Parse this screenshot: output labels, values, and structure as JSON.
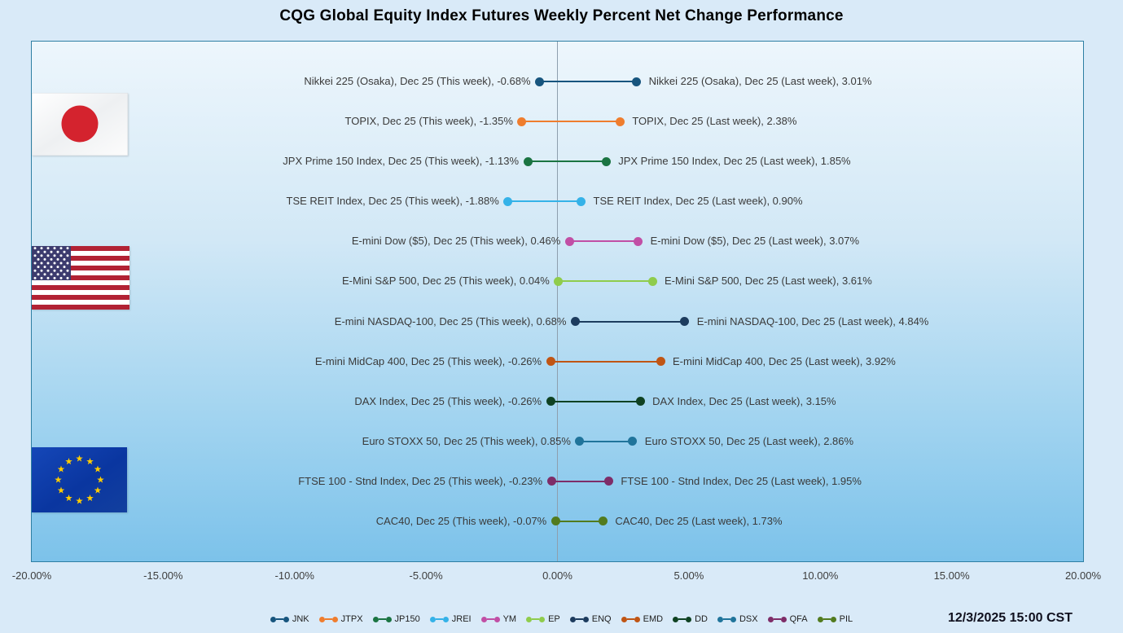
{
  "title": "CQG Global Equity Index Futures Weekly Percent Net Change Performance",
  "timestamp": "12/3/2025 15:00 CST",
  "flags": [
    {
      "icon": "japan-flag"
    },
    {
      "icon": "us-flag"
    },
    {
      "icon": "eu-flag"
    }
  ],
  "chart_data": {
    "type": "dumbbell",
    "title": "CQG Global Equity Index Futures Weekly Percent Net Change Performance",
    "xlabel": "",
    "xlim": [
      -20,
      20
    ],
    "x_ticks": [
      "-20.00%",
      "-15.00%",
      "-10.00%",
      "-5.00%",
      "0.00%",
      "5.00%",
      "10.00%",
      "15.00%",
      "20.00%"
    ],
    "x_tick_values": [
      -20,
      -15,
      -10,
      -5,
      0,
      5,
      10,
      15,
      20
    ],
    "grid": "zero-line-only",
    "legend_position": "bottom",
    "series_labels": [
      "This week",
      "Last week"
    ],
    "rows": [
      {
        "symbol": "JNK",
        "name": "Nikkei 225 (Osaka), Dec 25",
        "this_week": -0.68,
        "last_week": 3.01,
        "color": "#17557E",
        "this_week_label": "Nikkei 225 (Osaka), Dec 25 (This week), -0.68%",
        "last_week_label": "Nikkei 225 (Osaka), Dec 25 (Last week), 3.01%"
      },
      {
        "symbol": "JTPX",
        "name": "TOPIX, Dec 25",
        "this_week": -1.35,
        "last_week": 2.38,
        "color": "#EF7D2E",
        "this_week_label": "TOPIX, Dec 25 (This week), -1.35%",
        "last_week_label": "TOPIX, Dec 25 (Last week), 2.38%"
      },
      {
        "symbol": "JP150",
        "name": "JPX Prime 150 Index, Dec 25",
        "this_week": -1.13,
        "last_week": 1.85,
        "color": "#1B7442",
        "this_week_label": "JPX Prime 150 Index, Dec 25 (This week), -1.13%",
        "last_week_label": "JPX Prime 150 Index, Dec 25 (Last week), 1.85%"
      },
      {
        "symbol": "JREI",
        "name": "TSE REIT Index, Dec 25",
        "this_week": -1.88,
        "last_week": 0.9,
        "color": "#35B2E8",
        "this_week_label": "TSE REIT Index, Dec 25 (This week), -1.88%",
        "last_week_label": "TSE REIT Index, Dec 25 (Last week), 0.90%"
      },
      {
        "symbol": "YM",
        "name": "E-mini Dow ($5), Dec 25",
        "this_week": 0.46,
        "last_week": 3.07,
        "color": "#C14FA5",
        "this_week_label": "E-mini Dow ($5), Dec 25 (This week), 0.46%",
        "last_week_label": "E-mini Dow ($5), Dec 25 (Last week), 3.07%"
      },
      {
        "symbol": "EP",
        "name": "E-Mini S&P 500, Dec 25",
        "this_week": 0.04,
        "last_week": 3.61,
        "color": "#8FCC4C",
        "this_week_label": "E-Mini S&P 500, Dec 25 (This week), 0.04%",
        "last_week_label": "E-Mini S&P 500, Dec 25 (Last week), 3.61%"
      },
      {
        "symbol": "ENQ",
        "name": "E-mini NASDAQ-100, Dec 25",
        "this_week": 0.68,
        "last_week": 4.84,
        "color": "#1D3C5E",
        "this_week_label": "E-mini NASDAQ-100, Dec 25 (This week), 0.68%",
        "last_week_label": "E-mini NASDAQ-100, Dec 25 (Last week), 4.84%"
      },
      {
        "symbol": "EMD",
        "name": "E-mini MidCap 400, Dec 25",
        "this_week": -0.26,
        "last_week": 3.92,
        "color": "#C05514",
        "this_week_label": "E-mini MidCap 400, Dec 25 (This week), -0.26%",
        "last_week_label": "E-mini MidCap 400, Dec 25 (Last week), 3.92%"
      },
      {
        "symbol": "DD",
        "name": "DAX Index, Dec 25",
        "this_week": -0.26,
        "last_week": 3.15,
        "color": "#0F4222",
        "this_week_label": "DAX Index, Dec 25 (This week), -0.26%",
        "last_week_label": "DAX Index, Dec 25 (Last week), 3.15%"
      },
      {
        "symbol": "DSX",
        "name": "Euro STOXX 50, Dec 25",
        "this_week": 0.85,
        "last_week": 2.86,
        "color": "#20749B",
        "this_week_label": "Euro STOXX 50, Dec 25 (This week), 0.85%",
        "last_week_label": "Euro STOXX 50, Dec 25 (Last week), 2.86%"
      },
      {
        "symbol": "QFA",
        "name": "FTSE 100 - Stnd Index, Dec 25",
        "this_week": -0.23,
        "last_week": 1.95,
        "color": "#7E2D68",
        "this_week_label": "FTSE 100 - Stnd Index, Dec 25 (This week), -0.23%",
        "last_week_label": "FTSE 100 - Stnd Index, Dec 25 (Last week), 1.95%"
      },
      {
        "symbol": "PIL",
        "name": "CAC40, Dec 25",
        "this_week": -0.07,
        "last_week": 1.73,
        "color": "#527B1F",
        "this_week_label": "CAC40, Dec 25 (This week), -0.07%",
        "last_week_label": "CAC40, Dec 25 (Last week), 1.73%"
      }
    ],
    "groups": [
      {
        "flag": "japan-flag",
        "symbols": [
          "JNK",
          "JTPX",
          "JP150",
          "JREI"
        ]
      },
      {
        "flag": "us-flag",
        "symbols": [
          "YM",
          "EP",
          "ENQ",
          "EMD"
        ]
      },
      {
        "flag": "eu-flag",
        "symbols": [
          "DD",
          "DSX",
          "QFA",
          "PIL"
        ]
      }
    ]
  }
}
